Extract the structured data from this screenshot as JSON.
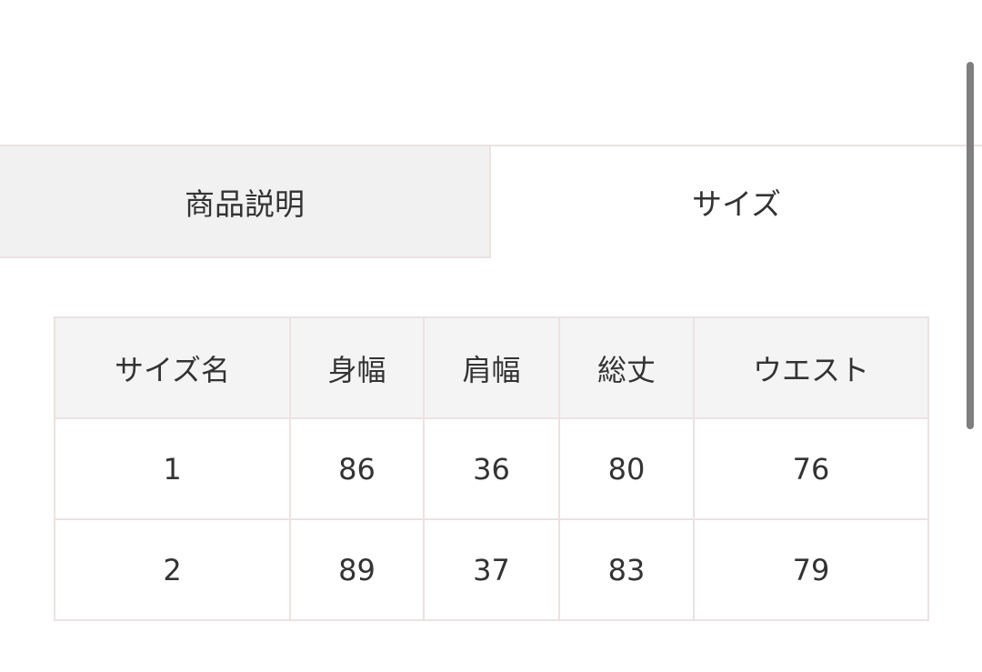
{
  "tabs": [
    {
      "label": "商品説明",
      "active": false
    },
    {
      "label": "サイズ",
      "active": true
    }
  ],
  "size_table": {
    "headers": [
      "サイズ名",
      "身幅",
      "肩幅",
      "総丈",
      "ウエスト"
    ],
    "rows": [
      [
        "1",
        "86",
        "36",
        "80",
        "76"
      ],
      [
        "2",
        "89",
        "37",
        "83",
        "79"
      ]
    ]
  },
  "colors": {
    "border": "#ece2e2",
    "inactive_tab_bg": "#f1f1f1",
    "header_bg": "#f4f4f4",
    "text": "#333333"
  }
}
